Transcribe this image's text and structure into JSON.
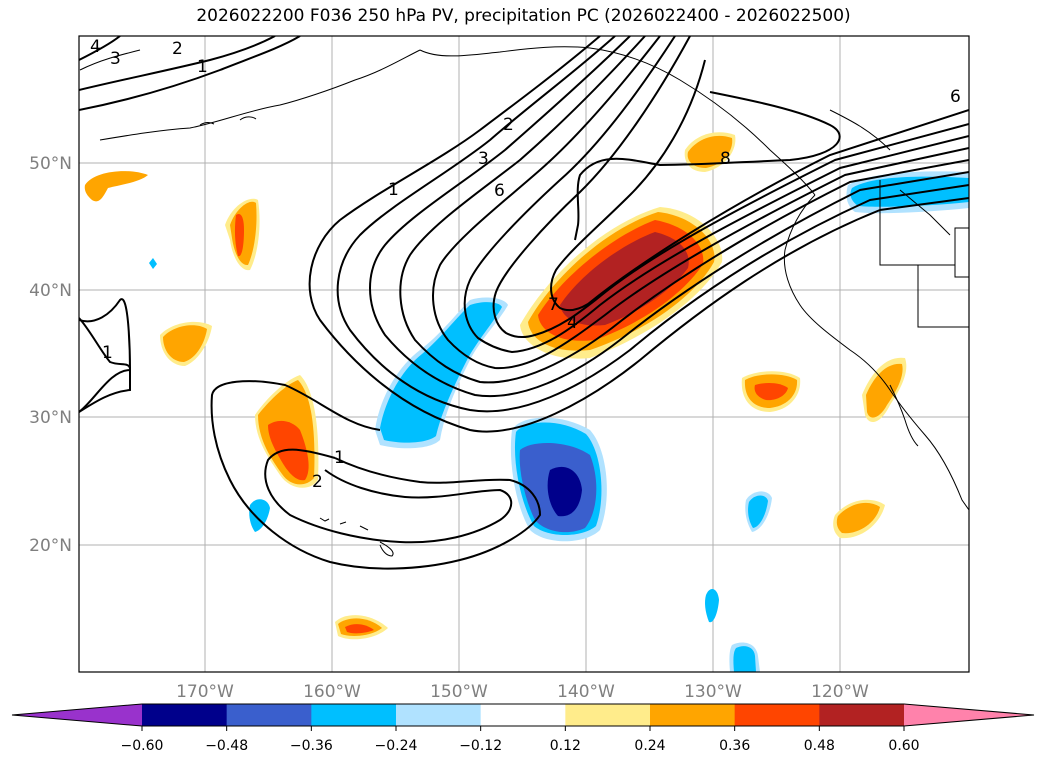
{
  "title": "2026022200 F036 250 hPa PV, precipitation PC (2026022400 - 2026022500)",
  "lat_labels": [
    "50°N",
    "40°N",
    "30°N",
    "20°N"
  ],
  "lon_labels": [
    "170°W",
    "160°W",
    "150°W",
    "140°W",
    "130°W",
    "120°W"
  ],
  "colorbar": {
    "colors": [
      "#9932cc",
      "#00008b",
      "#3a5fcd",
      "#00bfff",
      "#b0e2ff",
      "#ffffff",
      "#ffec8b",
      "#ffa500",
      "#ff4500",
      "#b22222",
      "#ff82ab"
    ],
    "tick_labels": [
      "−0.60",
      "−0.48",
      "−0.36",
      "−0.24",
      "−0.12",
      "0.12",
      "0.24",
      "0.36",
      "0.48",
      "0.60"
    ]
  },
  "contour_labels": [
    "4",
    "3",
    "2",
    "1",
    "1",
    "2",
    "3",
    "6",
    "6",
    "8",
    "7",
    "4",
    "1",
    "2",
    "1"
  ]
}
